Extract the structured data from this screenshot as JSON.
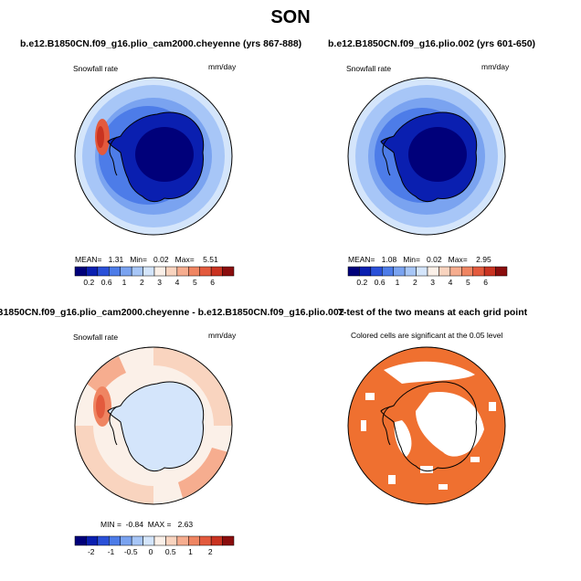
{
  "title": "SON",
  "panels": [
    {
      "title": "b.e12.B1850CN.f09_g16.plio_cam2000.cheyenne (yrs 867-888)",
      "variable": "Snowfall rate",
      "units": "mm/day",
      "stats": {
        "mean_label": "MEAN=",
        "mean": "1.31",
        "min_label": "Min=",
        "min": "0.02",
        "max_label": "Max=",
        "max": "5.51"
      },
      "colorbar": {
        "labels": [
          "0.2",
          "0.6",
          "1",
          "2",
          "3",
          "4",
          "5",
          "6"
        ],
        "colors": [
          "#00007a",
          "#0a1fb0",
          "#2a50d8",
          "#4d7ce8",
          "#7aa3f0",
          "#a7c6f7",
          "#d4e5fb",
          "#fbf0e8",
          "#f9d4bf",
          "#f6ad8f",
          "#ef8562",
          "#e35a3d",
          "#c93321",
          "#8a0d0d"
        ]
      }
    },
    {
      "title": "b.e12.B1850CN.f09_g16.plio.002 (yrs 601-650)",
      "variable": "Snowfall rate",
      "units": "mm/day",
      "stats": {
        "mean_label": "MEAN=",
        "mean": "1.08",
        "min_label": "Min=",
        "min": "0.02",
        "max_label": "Max=",
        "max": "2.95"
      },
      "colorbar": {
        "labels": [
          "0.2",
          "0.6",
          "1",
          "2",
          "3",
          "4",
          "5",
          "6"
        ],
        "colors": [
          "#00007a",
          "#0a1fb0",
          "#2a50d8",
          "#4d7ce8",
          "#7aa3f0",
          "#a7c6f7",
          "#d4e5fb",
          "#fbf0e8",
          "#f9d4bf",
          "#f6ad8f",
          "#ef8562",
          "#e35a3d",
          "#c93321",
          "#8a0d0d"
        ]
      }
    },
    {
      "title": "B1850CN.f09_g16.plio_cam2000.cheyenne - b.e12.B1850CN.f09_g16.plio.002",
      "variable": "Snowfall rate",
      "units": "mm/day",
      "stats": {
        "min_label": "MIN =",
        "min": "-0.84",
        "max_label": "MAX =",
        "max": "2.63"
      },
      "colorbar": {
        "labels": [
          "-2",
          "-1",
          "-0.5",
          "0",
          "0.5",
          "1",
          "2"
        ],
        "colors": [
          "#00007a",
          "#0a1fb0",
          "#2a50d8",
          "#4d7ce8",
          "#7aa3f0",
          "#a7c6f7",
          "#d4e5fb",
          "#fbf0e8",
          "#f9d4bf",
          "#f6ad8f",
          "#ef8562",
          "#e35a3d",
          "#c93321",
          "#8a0d0d"
        ]
      }
    },
    {
      "title": "T-test of the two means at each grid point",
      "subtitle": "Colored cells are significant at the 0.05 level"
    }
  ]
}
